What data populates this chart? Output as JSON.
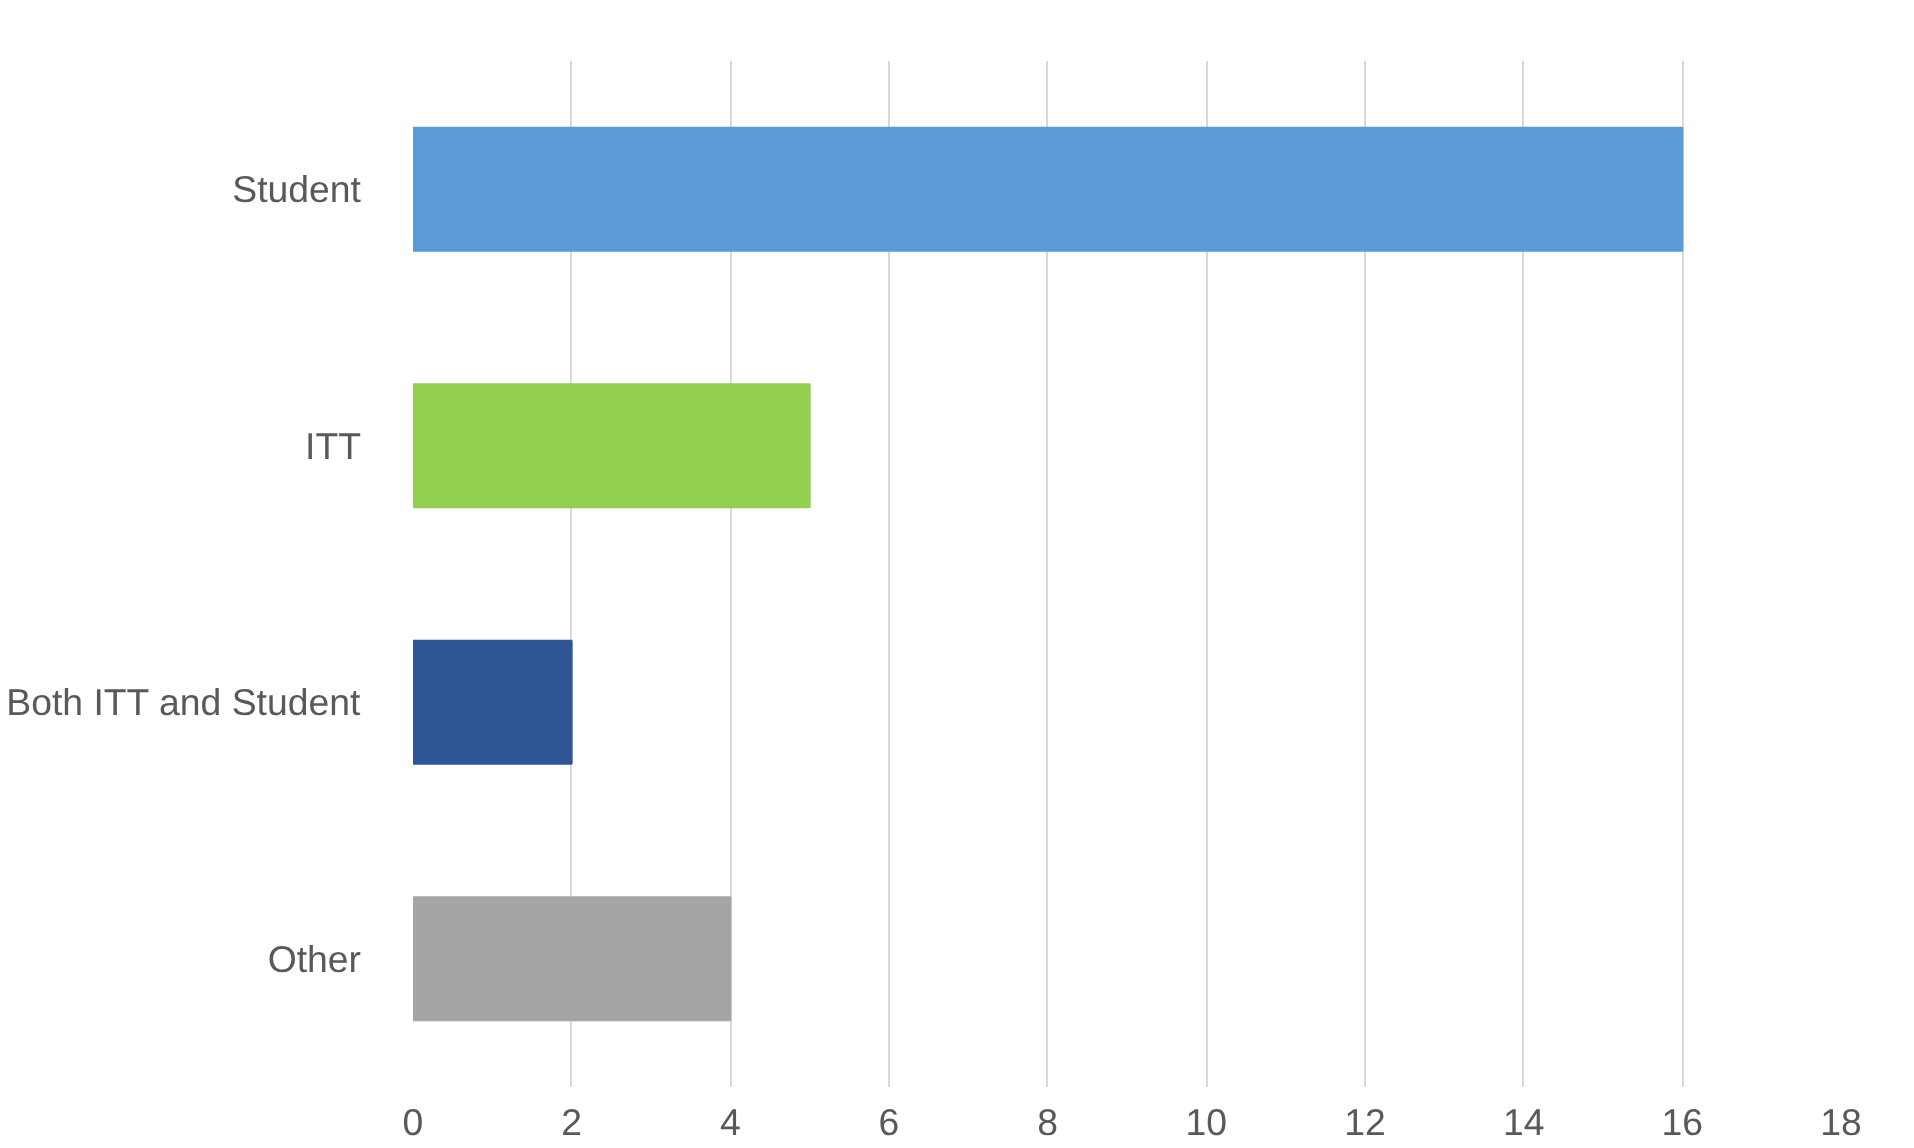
{
  "chart_data": {
    "type": "bar",
    "orientation": "horizontal",
    "categories": [
      "Student",
      "ITT",
      "Both ITT and Student",
      "Other"
    ],
    "values": [
      16,
      5,
      2,
      4
    ],
    "colors": [
      "#5b9bd5",
      "#92d050",
      "#2f5597",
      "#a5a5a5"
    ],
    "xlim": [
      0,
      18
    ],
    "xticks": [
      0,
      2,
      4,
      6,
      8,
      10,
      12,
      14,
      16,
      18
    ],
    "grid": "x"
  }
}
